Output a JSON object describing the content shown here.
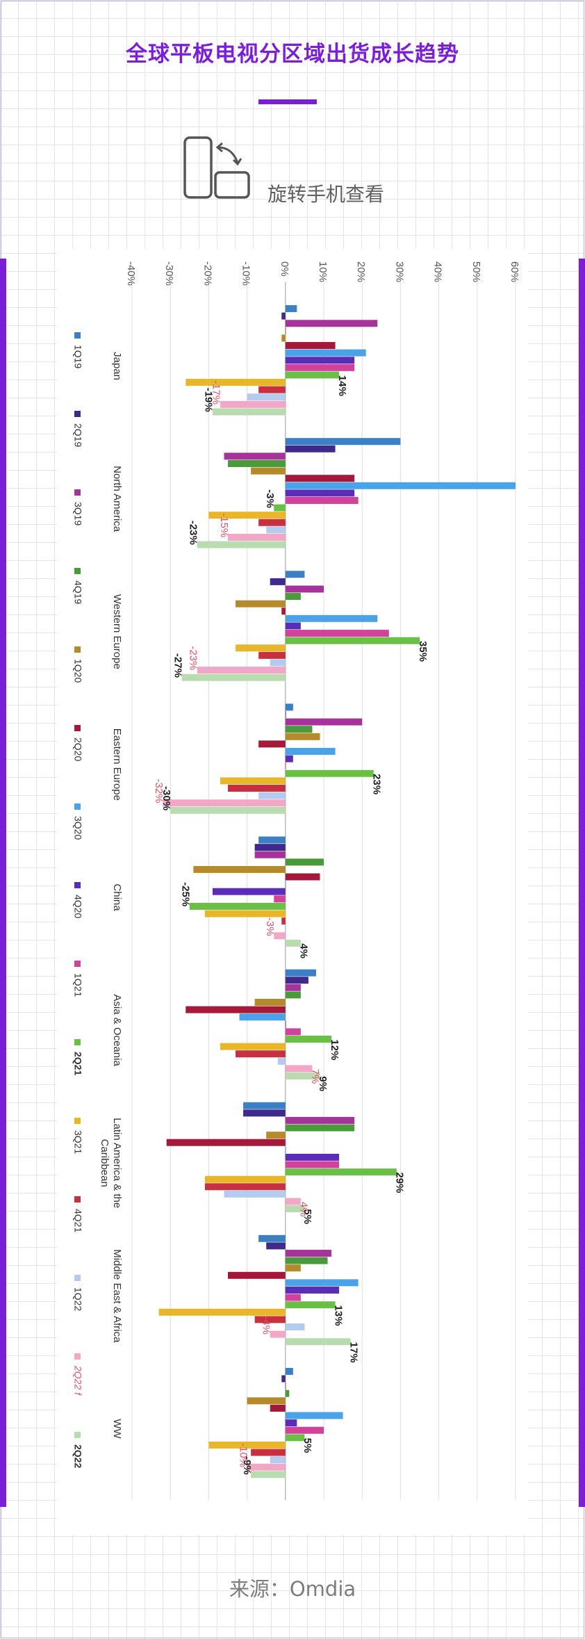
{
  "header": {
    "title": "全球平板电视分区域出货成长趋势",
    "rotate_hint": "旋转手机查看"
  },
  "footer": {
    "source": "来源：Omdia"
  },
  "chart_data": {
    "type": "bar",
    "orientation": "horizontal",
    "title": "",
    "xlabel": "",
    "ylabel": "",
    "xlim": [
      -40,
      60
    ],
    "grid": true,
    "legend_position": "bottom",
    "tick_labels": [
      "-40%",
      "-30%",
      "-20%",
      "-10%",
      "0%",
      "10%",
      "20%",
      "30%",
      "40%",
      "50%",
      "60%"
    ],
    "ticks": [
      -40,
      -30,
      -20,
      -10,
      0,
      10,
      20,
      30,
      40,
      50,
      60
    ],
    "categories": [
      "Japan",
      "North America",
      "Western Europe",
      "Eastern Europe",
      "China",
      "Asia & Oceania",
      "Latin America & the Caribbean",
      "Middle East & Africa",
      "WW"
    ],
    "category_lines": [
      [
        "Japan"
      ],
      [
        "North America"
      ],
      [
        "Western Europe"
      ],
      [
        "Eastern Europe"
      ],
      [
        "China"
      ],
      [
        "Asia & Oceania"
      ],
      [
        "Latin America & the",
        "Caribbean"
      ],
      [
        "Middle East & Africa"
      ],
      [
        "WW"
      ]
    ],
    "series": [
      {
        "name": "1Q19",
        "color": "#3b7fc4",
        "values": [
          3,
          30,
          5,
          2,
          -7,
          8,
          -11,
          -7,
          2
        ]
      },
      {
        "name": "2Q19",
        "color": "#3f2a8c",
        "values": [
          -1,
          13,
          -4,
          0,
          -8,
          6,
          -11,
          -5,
          -1
        ]
      },
      {
        "name": "3Q19",
        "color": "#a6339a",
        "values": [
          24,
          -16,
          10,
          20,
          -8,
          4,
          18,
          12,
          0
        ]
      },
      {
        "name": "4Q19",
        "color": "#4a9a3c",
        "values": [
          0,
          -15,
          4,
          7,
          10,
          4,
          18,
          11,
          1
        ]
      },
      {
        "name": "1Q20",
        "color": "#b58a2a",
        "values": [
          -1,
          -9,
          -13,
          9,
          -24,
          -8,
          -5,
          4,
          -10
        ]
      },
      {
        "name": "2Q20",
        "color": "#a5183a",
        "values": [
          13,
          18,
          -1,
          -7,
          9,
          -26,
          -31,
          -15,
          -4
        ]
      },
      {
        "name": "3Q20",
        "color": "#4aa3e8",
        "values": [
          21,
          60,
          24,
          13,
          0,
          -12,
          0,
          19,
          15
        ]
      },
      {
        "name": "4Q20",
        "color": "#5a2db8",
        "values": [
          18,
          18,
          4,
          2,
          -19,
          0,
          14,
          14,
          3
        ]
      },
      {
        "name": "1Q21",
        "color": "#d2419c",
        "values": [
          18,
          19,
          27,
          0,
          -3,
          4,
          14,
          4,
          10
        ]
      },
      {
        "name": "2Q21",
        "color": "#6abf45",
        "values": [
          14,
          -3,
          35,
          23,
          -25,
          12,
          29,
          13,
          5
        ]
      },
      {
        "name": "3Q21",
        "color": "#e8b628",
        "values": [
          -26,
          -20,
          -13,
          -17,
          -21,
          -17,
          -21,
          -33,
          -20
        ]
      },
      {
        "name": "4Q21",
        "color": "#c82f3f",
        "values": [
          -7,
          -7,
          -7,
          -15,
          -1,
          -13,
          -21,
          -8,
          -9
        ]
      },
      {
        "name": "1Q22",
        "color": "#b4cbef",
        "values": [
          -10,
          -5,
          -4,
          -7,
          0,
          -2,
          -16,
          5,
          -4
        ]
      },
      {
        "name": "2Q22 f",
        "color": "#f2a7c6",
        "values": [
          -17,
          -15,
          -23,
          -32,
          -3,
          7,
          4,
          -4,
          -10
        ]
      },
      {
        "name": "2Q22",
        "color": "#b9dbb0",
        "values": [
          -19,
          -23,
          -27,
          -30,
          4,
          9,
          5,
          17,
          -9
        ]
      }
    ],
    "data_labels": [
      {
        "category": "Japan",
        "series": "2Q21",
        "text": "14%"
      },
      {
        "category": "Japan",
        "series": "2Q22 f",
        "text": "-17%"
      },
      {
        "category": "Japan",
        "series": "2Q22",
        "text": "-19%"
      },
      {
        "category": "North America",
        "series": "2Q21",
        "text": "-3%"
      },
      {
        "category": "North America",
        "series": "2Q22 f",
        "text": "-15%"
      },
      {
        "category": "North America",
        "series": "2Q22",
        "text": "-23%"
      },
      {
        "category": "Western Europe",
        "series": "2Q21",
        "text": "35%"
      },
      {
        "category": "Western Europe",
        "series": "2Q22 f",
        "text": "-23%"
      },
      {
        "category": "Western Europe",
        "series": "2Q22",
        "text": "-27%"
      },
      {
        "category": "Eastern Europe",
        "series": "2Q21",
        "text": "23%"
      },
      {
        "category": "Eastern Europe",
        "series": "2Q22 f",
        "text": "-32%"
      },
      {
        "category": "Eastern Europe",
        "series": "2Q22",
        "text": "-30%"
      },
      {
        "category": "China",
        "series": "2Q21",
        "text": "-25%"
      },
      {
        "category": "China",
        "series": "2Q22 f",
        "text": "-3%"
      },
      {
        "category": "China",
        "series": "2Q22",
        "text": "4%"
      },
      {
        "category": "Asia & Oceania",
        "series": "2Q21",
        "text": "12%"
      },
      {
        "category": "Asia & Oceania",
        "series": "2Q22 f",
        "text": "7%"
      },
      {
        "category": "Asia & Oceania",
        "series": "2Q22",
        "text": "9%"
      },
      {
        "category": "Latin America & the Caribbean",
        "series": "2Q21",
        "text": "29%"
      },
      {
        "category": "Latin America & the Caribbean",
        "series": "2Q22 f",
        "text": "4%"
      },
      {
        "category": "Latin America & the Caribbean",
        "series": "2Q22",
        "text": "5%"
      },
      {
        "category": "Middle East & Africa",
        "series": "2Q21",
        "text": "13%"
      },
      {
        "category": "Middle East & Africa",
        "series": "2Q22 f",
        "text": "-4%"
      },
      {
        "category": "Middle East & Africa",
        "series": "2Q22",
        "text": "17%"
      },
      {
        "category": "WW",
        "series": "2Q21",
        "text": "5%"
      },
      {
        "category": "WW",
        "series": "2Q22 f",
        "text": "-10%"
      },
      {
        "category": "WW",
        "series": "2Q22",
        "text": "-9%"
      }
    ],
    "label_colors": {
      "bold": "#222222",
      "forecast": "#e0506a"
    }
  }
}
